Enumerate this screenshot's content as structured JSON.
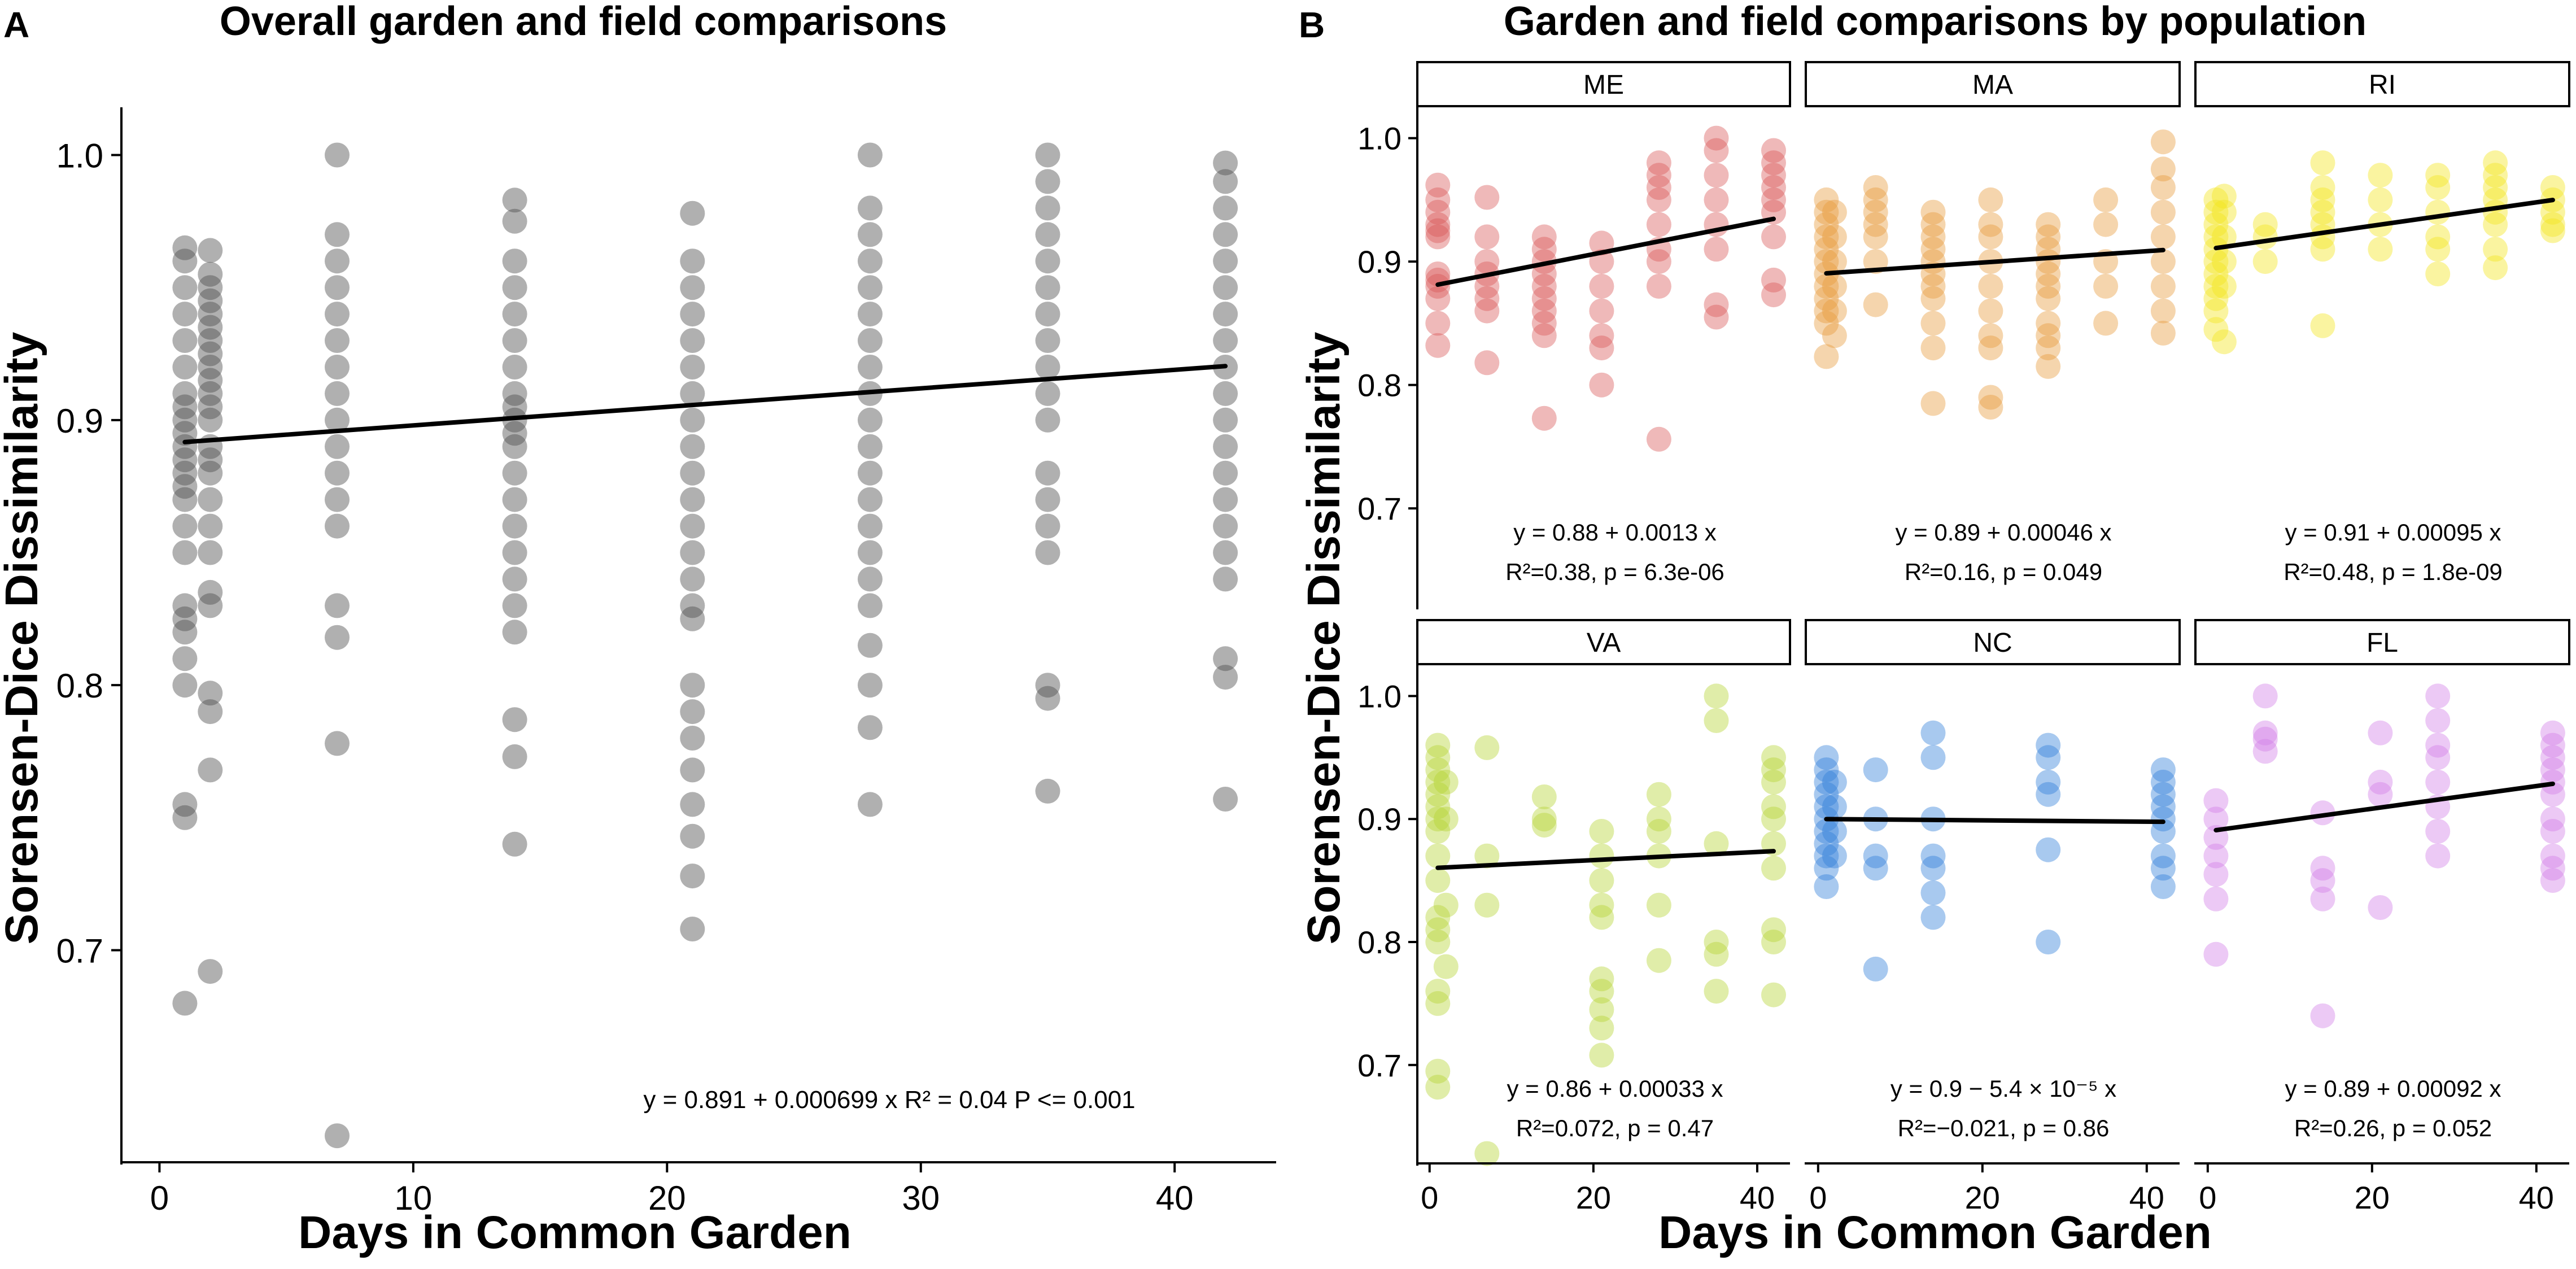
{
  "chart_data": [
    {
      "panel": "A",
      "type": "scatter",
      "title": "Overall garden and field comparisons",
      "xlabel": "Days in Common Garden",
      "ylabel": "Sorensen-Dice Dissimilarity",
      "xlim": [
        -1.5,
        44
      ],
      "ylim": [
        0.62,
        1.018
      ],
      "xticks": [
        0,
        10,
        20,
        30,
        40
      ],
      "xtick_labels": [
        "0",
        "10",
        "20",
        "30",
        "40"
      ],
      "yticks": [
        0.7,
        0.8,
        0.9,
        1.0
      ],
      "ytick_labels": [
        "0.7",
        "0.8",
        "0.9",
        "1.0"
      ],
      "color": "#505050",
      "fit": {
        "intercept": 0.891,
        "slope": 0.000699
      },
      "annotation": "y = 0.891 + 0.000699 x   R² = 0.04   P <= 0.001",
      "points": [
        {
          "x": 1,
          "y": [
            0.68,
            0.75,
            0.755,
            0.8,
            0.81,
            0.82,
            0.825,
            0.83,
            0.85,
            0.86,
            0.87,
            0.875,
            0.88,
            0.885,
            0.89,
            0.895,
            0.9,
            0.905,
            0.91,
            0.92,
            0.93,
            0.94,
            0.95,
            0.96,
            0.965
          ]
        },
        {
          "x": 2,
          "y": [
            0.692,
            0.768,
            0.79,
            0.797,
            0.83,
            0.835,
            0.85,
            0.86,
            0.87,
            0.88,
            0.885,
            0.89,
            0.9,
            0.905,
            0.91,
            0.915,
            0.92,
            0.925,
            0.93,
            0.935,
            0.94,
            0.945,
            0.95,
            0.955,
            0.964
          ]
        },
        {
          "x": 7,
          "y": [
            0.63,
            0.778,
            0.818,
            0.83,
            0.86,
            0.87,
            0.88,
            0.89,
            0.9,
            0.91,
            0.92,
            0.93,
            0.94,
            0.95,
            0.96,
            0.97,
            1.0
          ]
        },
        {
          "x": 14,
          "y": [
            0.74,
            0.773,
            0.787,
            0.82,
            0.83,
            0.84,
            0.85,
            0.86,
            0.87,
            0.88,
            0.89,
            0.895,
            0.9,
            0.905,
            0.91,
            0.92,
            0.93,
            0.94,
            0.95,
            0.96,
            0.975,
            0.983
          ]
        },
        {
          "x": 21,
          "y": [
            0.708,
            0.728,
            0.743,
            0.755,
            0.768,
            0.78,
            0.79,
            0.8,
            0.825,
            0.83,
            0.84,
            0.85,
            0.86,
            0.87,
            0.88,
            0.89,
            0.9,
            0.91,
            0.92,
            0.93,
            0.94,
            0.95,
            0.96,
            0.978
          ]
        },
        {
          "x": 28,
          "y": [
            0.755,
            0.784,
            0.8,
            0.815,
            0.83,
            0.84,
            0.85,
            0.86,
            0.87,
            0.88,
            0.89,
            0.9,
            0.91,
            0.92,
            0.93,
            0.94,
            0.95,
            0.96,
            0.97,
            0.98,
            1.0
          ]
        },
        {
          "x": 35,
          "y": [
            0.76,
            0.795,
            0.8,
            0.85,
            0.86,
            0.87,
            0.88,
            0.9,
            0.91,
            0.92,
            0.93,
            0.94,
            0.95,
            0.96,
            0.97,
            0.98,
            0.99,
            1.0
          ]
        },
        {
          "x": 42,
          "y": [
            0.757,
            0.803,
            0.81,
            0.84,
            0.85,
            0.86,
            0.87,
            0.88,
            0.89,
            0.9,
            0.91,
            0.92,
            0.93,
            0.94,
            0.95,
            0.96,
            0.97,
            0.98,
            0.99,
            0.997
          ]
        }
      ]
    },
    {
      "panel": "B",
      "type": "scatter",
      "title": "Garden and field comparisons by population",
      "xlabel": "Days in Common Garden",
      "ylabel": "Sorensen-Dice Dissimilarity",
      "xlim": [
        -1.5,
        44
      ],
      "ylim": [
        0.62,
        1.025
      ],
      "xticks": [
        0,
        20,
        40
      ],
      "xtick_labels": [
        "0",
        "20",
        "40"
      ],
      "yticks": [
        0.7,
        0.8,
        0.9,
        1.0
      ],
      "ytick_labels": [
        "0.7",
        "0.8",
        "0.9",
        "1.0"
      ],
      "facets": [
        {
          "name": "ME",
          "color": "#d95858",
          "fit": {
            "intercept": 0.88,
            "slope": 0.0013
          },
          "eq": "y = 0.88 + 0.0013 x",
          "stats": "R²=0.38, p = 6.3e-06",
          "points": [
            {
              "x": 1,
              "y": [
                0.832,
                0.85,
                0.87,
                0.88,
                0.885,
                0.89,
                0.92,
                0.925,
                0.93,
                0.94,
                0.95,
                0.962
              ]
            },
            {
              "x": 7,
              "y": [
                0.818,
                0.86,
                0.87,
                0.88,
                0.89,
                0.9,
                0.92,
                0.952
              ]
            },
            {
              "x": 14,
              "y": [
                0.773,
                0.84,
                0.85,
                0.86,
                0.87,
                0.88,
                0.89,
                0.9,
                0.91,
                0.92
              ]
            },
            {
              "x": 21,
              "y": [
                0.8,
                0.83,
                0.84,
                0.86,
                0.88,
                0.9,
                0.915
              ]
            },
            {
              "x": 28,
              "y": [
                0.756,
                0.88,
                0.9,
                0.91,
                0.93,
                0.95,
                0.96,
                0.97,
                0.98
              ]
            },
            {
              "x": 35,
              "y": [
                0.855,
                0.865,
                0.91,
                0.93,
                0.95,
                0.97,
                0.99,
                1.0
              ]
            },
            {
              "x": 42,
              "y": [
                0.873,
                0.885,
                0.92,
                0.94,
                0.95,
                0.96,
                0.97,
                0.98,
                0.99
              ]
            }
          ]
        },
        {
          "name": "MA",
          "color": "#e89a3c",
          "fit": {
            "intercept": 0.89,
            "slope": 0.00046
          },
          "eq": "y = 0.89 + 0.00046 x",
          "stats": "R²=0.16, p = 0.049",
          "points": [
            {
              "x": 1,
              "y": [
                0.823,
                0.85,
                0.86,
                0.87,
                0.88,
                0.89,
                0.9,
                0.91,
                0.92,
                0.93,
                0.94,
                0.95
              ]
            },
            {
              "x": 2,
              "y": [
                0.84,
                0.86,
                0.88,
                0.9,
                0.92,
                0.94
              ]
            },
            {
              "x": 7,
              "y": [
                0.865,
                0.9,
                0.92,
                0.93,
                0.94,
                0.95,
                0.96
              ]
            },
            {
              "x": 14,
              "y": [
                0.785,
                0.83,
                0.85,
                0.87,
                0.88,
                0.89,
                0.9,
                0.91,
                0.92,
                0.93,
                0.94
              ]
            },
            {
              "x": 21,
              "y": [
                0.782,
                0.79,
                0.83,
                0.84,
                0.86,
                0.88,
                0.9,
                0.92,
                0.93,
                0.95
              ]
            },
            {
              "x": 28,
              "y": [
                0.815,
                0.83,
                0.84,
                0.85,
                0.87,
                0.88,
                0.89,
                0.9,
                0.91,
                0.92,
                0.93
              ]
            },
            {
              "x": 35,
              "y": [
                0.85,
                0.88,
                0.9,
                0.93,
                0.95
              ]
            },
            {
              "x": 42,
              "y": [
                0.842,
                0.86,
                0.88,
                0.9,
                0.92,
                0.94,
                0.96,
                0.975,
                0.997
              ]
            }
          ]
        },
        {
          "name": "RI",
          "color": "#f2e41c",
          "fit": {
            "intercept": 0.91,
            "slope": 0.00095
          },
          "eq": "y = 0.91 + 0.00095 x",
          "stats": "R²=0.48, p = 1.8e-09",
          "points": [
            {
              "x": 1,
              "y": [
                0.845,
                0.86,
                0.87,
                0.88,
                0.89,
                0.9,
                0.91,
                0.92,
                0.93,
                0.94,
                0.95
              ]
            },
            {
              "x": 2,
              "y": [
                0.835,
                0.88,
                0.9,
                0.92,
                0.94,
                0.953
              ]
            },
            {
              "x": 7,
              "y": [
                0.9,
                0.92,
                0.93
              ]
            },
            {
              "x": 14,
              "y": [
                0.848,
                0.91,
                0.92,
                0.93,
                0.94,
                0.95,
                0.96,
                0.98
              ]
            },
            {
              "x": 21,
              "y": [
                0.91,
                0.93,
                0.95,
                0.97
              ]
            },
            {
              "x": 28,
              "y": [
                0.89,
                0.91,
                0.92,
                0.94,
                0.96,
                0.97
              ]
            },
            {
              "x": 35,
              "y": [
                0.895,
                0.91,
                0.93,
                0.94,
                0.95,
                0.96,
                0.97,
                0.98
              ]
            },
            {
              "x": 42,
              "y": [
                0.925,
                0.93,
                0.94,
                0.95,
                0.96
              ]
            }
          ]
        },
        {
          "name": "VA",
          "color": "#b5d433",
          "fit": {
            "intercept": 0.86,
            "slope": 0.00033
          },
          "eq": "y = 0.86 + 0.00033 x",
          "stats": "R²=0.072, p = 0.47",
          "points": [
            {
              "x": 1,
              "y": [
                0.682,
                0.695,
                0.75,
                0.76,
                0.8,
                0.81,
                0.82,
                0.85,
                0.87,
                0.89,
                0.9,
                0.91,
                0.92,
                0.93,
                0.94,
                0.95,
                0.96
              ]
            },
            {
              "x": 2,
              "y": [
                0.78,
                0.83,
                0.9,
                0.93
              ]
            },
            {
              "x": 7,
              "y": [
                0.628,
                0.83,
                0.87,
                0.958
              ]
            },
            {
              "x": 14,
              "y": [
                0.895,
                0.9,
                0.918
              ]
            },
            {
              "x": 21,
              "y": [
                0.708,
                0.73,
                0.745,
                0.76,
                0.77,
                0.82,
                0.83,
                0.85,
                0.87,
                0.89
              ]
            },
            {
              "x": 28,
              "y": [
                0.785,
                0.83,
                0.87,
                0.89,
                0.9,
                0.92
              ]
            },
            {
              "x": 35,
              "y": [
                0.76,
                0.79,
                0.8,
                0.88,
                0.98,
                1.0
              ]
            },
            {
              "x": 42,
              "y": [
                0.757,
                0.8,
                0.81,
                0.86,
                0.88,
                0.9,
                0.91,
                0.93,
                0.94,
                0.95
              ]
            }
          ]
        },
        {
          "name": "NC",
          "color": "#2f7fd8",
          "fit": {
            "intercept": 0.9,
            "slope": -5.4e-05
          },
          "eq": "y = 0.9 − 5.4 × 10⁻⁵ x",
          "stats": "R²=−0.021, p = 0.86",
          "points": [
            {
              "x": 1,
              "y": [
                0.845,
                0.86,
                0.87,
                0.88,
                0.89,
                0.9,
                0.91,
                0.92,
                0.93,
                0.94,
                0.95
              ]
            },
            {
              "x": 2,
              "y": [
                0.87,
                0.89,
                0.91,
                0.93
              ]
            },
            {
              "x": 7,
              "y": [
                0.778,
                0.86,
                0.87,
                0.9,
                0.94
              ]
            },
            {
              "x": 14,
              "y": [
                0.82,
                0.84,
                0.86,
                0.87,
                0.9,
                0.95,
                0.97
              ]
            },
            {
              "x": 28,
              "y": [
                0.8,
                0.875,
                0.92,
                0.93,
                0.95,
                0.96
              ]
            },
            {
              "x": 42,
              "y": [
                0.845,
                0.86,
                0.87,
                0.89,
                0.9,
                0.91,
                0.92,
                0.93,
                0.94
              ]
            }
          ]
        },
        {
          "name": "FL",
          "color": "#d27ee8",
          "fit": {
            "intercept": 0.89,
            "slope": 0.00092
          },
          "eq": "y = 0.89 + 0.00092 x",
          "stats": "R²=0.26, p = 0.052",
          "points": [
            {
              "x": 1,
              "y": [
                0.79,
                0.835,
                0.855,
                0.87,
                0.885,
                0.9,
                0.915
              ]
            },
            {
              "x": 7,
              "y": [
                0.955,
                0.965,
                0.97,
                1.0
              ]
            },
            {
              "x": 14,
              "y": [
                0.74,
                0.835,
                0.85,
                0.86,
                0.905
              ]
            },
            {
              "x": 21,
              "y": [
                0.828,
                0.92,
                0.93,
                0.97
              ]
            },
            {
              "x": 28,
              "y": [
                0.87,
                0.89,
                0.91,
                0.93,
                0.95,
                0.96,
                0.98,
                1.0
              ]
            },
            {
              "x": 42,
              "y": [
                0.85,
                0.86,
                0.87,
                0.89,
                0.9,
                0.92,
                0.93,
                0.94,
                0.95,
                0.96,
                0.97
              ]
            }
          ]
        }
      ]
    }
  ]
}
